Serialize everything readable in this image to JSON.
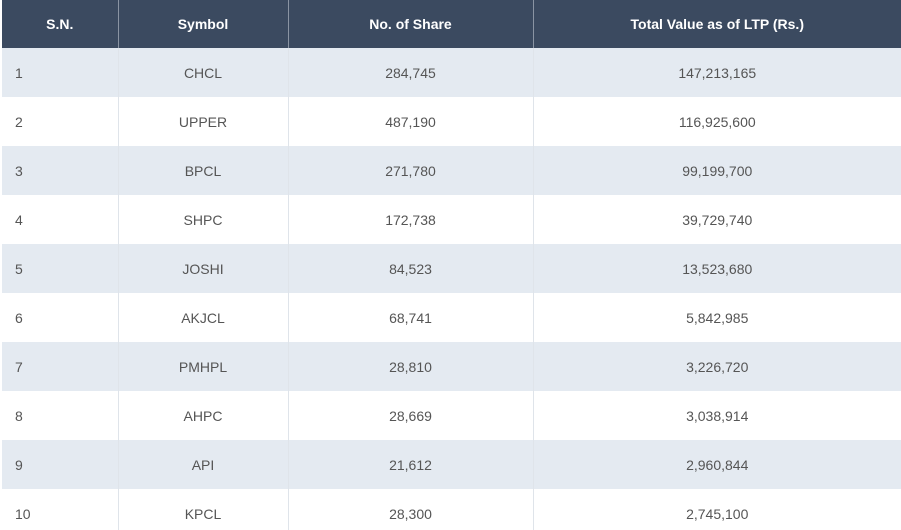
{
  "table": {
    "headers": {
      "sn": "S.N.",
      "symbol": "Symbol",
      "shares": "No. of Share",
      "total_value": "Total Value as of LTP (Rs.)"
    },
    "rows": [
      {
        "sn": "1",
        "symbol": "CHCL",
        "shares": "284,745",
        "total_value": "147,213,165"
      },
      {
        "sn": "2",
        "symbol": "UPPER",
        "shares": "487,190",
        "total_value": "116,925,600"
      },
      {
        "sn": "3",
        "symbol": "BPCL",
        "shares": "271,780",
        "total_value": "99,199,700"
      },
      {
        "sn": "4",
        "symbol": "SHPC",
        "shares": "172,738",
        "total_value": "39,729,740"
      },
      {
        "sn": "5",
        "symbol": "JOSHI",
        "shares": "84,523",
        "total_value": "13,523,680"
      },
      {
        "sn": "6",
        "symbol": "AKJCL",
        "shares": "68,741",
        "total_value": "5,842,985"
      },
      {
        "sn": "7",
        "symbol": "PMHPL",
        "shares": "28,810",
        "total_value": "3,226,720"
      },
      {
        "sn": "8",
        "symbol": "AHPC",
        "shares": "28,669",
        "total_value": "3,038,914"
      },
      {
        "sn": "9",
        "symbol": "API",
        "shares": "21,612",
        "total_value": "2,960,844"
      },
      {
        "sn": "10",
        "symbol": "KPCL",
        "shares": "28,300",
        "total_value": "2,745,100"
      }
    ]
  },
  "colors": {
    "header_bg": "#3b4a60",
    "header_text": "#ffffff",
    "row_alt_bg": "#e4eaf1",
    "row_bg": "#ffffff",
    "cell_text": "#555555"
  }
}
